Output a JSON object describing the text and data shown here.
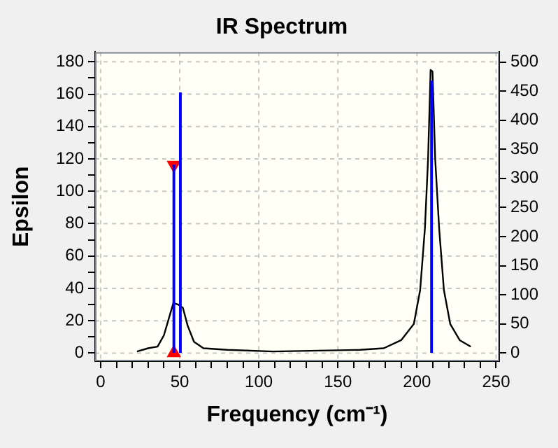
{
  "chart_data": {
    "type": "line",
    "title": "IR Spectrum",
    "xlabel": "Frequency (cm⁻¹)",
    "ylabel": "Epsilon",
    "xlim": [
      -3.5,
      252
    ],
    "xticks": [
      0,
      {
        "value": 10,
        "label": null
      },
      {
        "value": 20,
        "label": null
      },
      {
        "value": 30,
        "label": null
      },
      {
        "value": 40,
        "label": null
      },
      50,
      {
        "value": 60,
        "label": null
      },
      {
        "value": 70,
        "label": null
      },
      {
        "value": 80,
        "label": null
      },
      {
        "value": 90,
        "label": null
      },
      100,
      {
        "value": 110,
        "label": null
      },
      {
        "value": 120,
        "label": null
      },
      {
        "value": 130,
        "label": null
      },
      {
        "value": 140,
        "label": null
      },
      150,
      {
        "value": 160,
        "label": null
      },
      {
        "value": 170,
        "label": null
      },
      {
        "value": 180,
        "label": null
      },
      {
        "value": 190,
        "label": null
      },
      200,
      {
        "value": 210,
        "label": null
      },
      {
        "value": 220,
        "label": null
      },
      {
        "value": 230,
        "label": null
      },
      {
        "value": 240,
        "label": null
      },
      250
    ],
    "ylim": [
      -5,
      186
    ],
    "yticks": [
      0,
      {
        "value": 10,
        "label": null
      },
      20,
      {
        "value": 30,
        "label": null
      },
      40,
      {
        "value": 50,
        "label": null
      },
      60,
      {
        "value": 70,
        "label": null
      },
      80,
      {
        "value": 90,
        "label": null
      },
      100,
      {
        "value": 110,
        "label": null
      },
      120,
      {
        "value": 130,
        "label": null
      },
      140,
      {
        "value": 150,
        "label": null
      },
      160,
      {
        "value": 170,
        "label": null
      },
      180
    ],
    "y2lim": [
      -14,
      517
    ],
    "y2ticks": [
      0,
      50,
      100,
      150,
      200,
      250,
      300,
      350,
      400,
      450,
      500
    ],
    "grid": true,
    "legend": false,
    "series": [
      {
        "color": "#000000",
        "marker": "none",
        "x": [
          23,
          30,
          36,
          40,
          43,
          46,
          49,
          52,
          55,
          59,
          65,
          80,
          109,
          164,
          179,
          190,
          198,
          202,
          205,
          207,
          208.6,
          209.8,
          211.5,
          214,
          217,
          221,
          227,
          234
        ],
        "values": [
          1,
          3,
          4,
          11,
          21,
          31,
          30,
          28,
          17,
          7,
          3,
          2,
          1,
          2,
          3,
          8,
          18,
          39,
          77,
          120,
          175,
          174,
          120,
          77,
          39,
          18,
          8,
          4
        ]
      },
      {
        "type": "bar",
        "axis": "y2",
        "color": "#0000ff",
        "x": [
          46.3,
          50.4,
          209.2
        ],
        "values": [
          323,
          447,
          467
        ]
      },
      {
        "type": "scatter",
        "axis": "y2",
        "color": "#ff0000",
        "marker": "triangle",
        "x": [
          46.3,
          46.3
        ],
        "values": [
          0,
          323
        ]
      }
    ]
  }
}
